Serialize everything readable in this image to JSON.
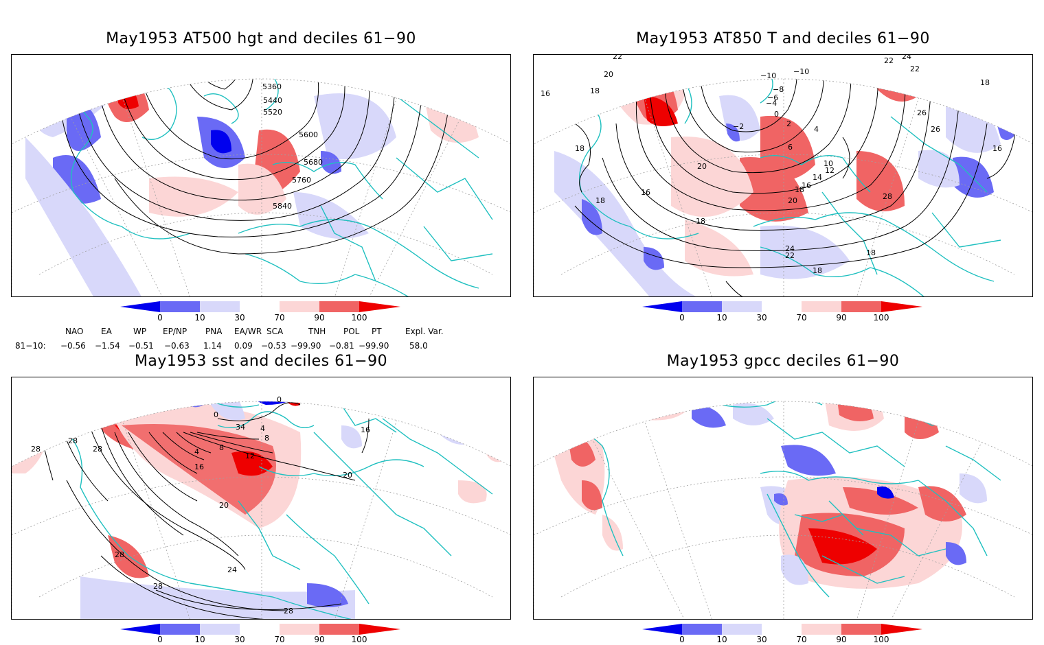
{
  "panels": [
    {
      "id": "hgt500",
      "title": "May1953 AT500 hgt and deciles 61−90",
      "contour_labels": [
        "5360",
        "5440",
        "5520",
        "5600",
        "5680",
        "5760",
        "5840"
      ]
    },
    {
      "id": "t850",
      "title": "May1953 AT850 T and deciles 61−90",
      "contour_labels": [
        "22",
        "20",
        "18",
        "16",
        "18",
        "18",
        "16",
        "18",
        "−10",
        "−10",
        "−8",
        "−6",
        "−4",
        "0",
        "−2",
        "2",
        "4",
        "6",
        "10",
        "12",
        "14",
        "16",
        "18",
        "20",
        "22",
        "24",
        "22",
        "18",
        "20",
        "26",
        "28",
        "26",
        "24",
        "22",
        "18",
        "16",
        "18"
      ]
    },
    {
      "id": "sst",
      "title": "May1953 sst and deciles 61−90",
      "contour_labels": [
        "28",
        "28",
        "28",
        "0",
        "4",
        "8",
        "12",
        "16",
        "20",
        "24",
        "28",
        "28",
        "28",
        "20",
        "16",
        "0",
        "34",
        "4",
        "8"
      ]
    },
    {
      "id": "gpcc",
      "title": "May1953 gpcc deciles 61−90",
      "contour_labels": []
    }
  ],
  "colorbar": {
    "ticks": [
      "0",
      "10",
      "30",
      "70",
      "90",
      "100"
    ],
    "colors": [
      "#0000ee",
      "#6a6af5",
      "#d8d8fa",
      "#ffffff",
      "#fcd6d6",
      "#f06464",
      "#ee0000"
    ]
  },
  "indices": {
    "headers": [
      "NAO",
      "EA",
      "WP",
      "EP/NP",
      "PNA",
      "EA/WR",
      "SCA",
      "TNH",
      "POL",
      "PT",
      "Expl. Var."
    ],
    "row_label": "81−10:",
    "values": [
      "−0.56",
      "−1.54",
      "−0.51",
      "−0.63",
      "1.14",
      "0.09",
      "−0.53",
      "−99.90",
      "−0.81",
      "−99.90",
      "58.0"
    ]
  },
  "colors": {
    "coast": "#20c0c0",
    "contour": "#000000",
    "grid": "#a0a0a0"
  }
}
